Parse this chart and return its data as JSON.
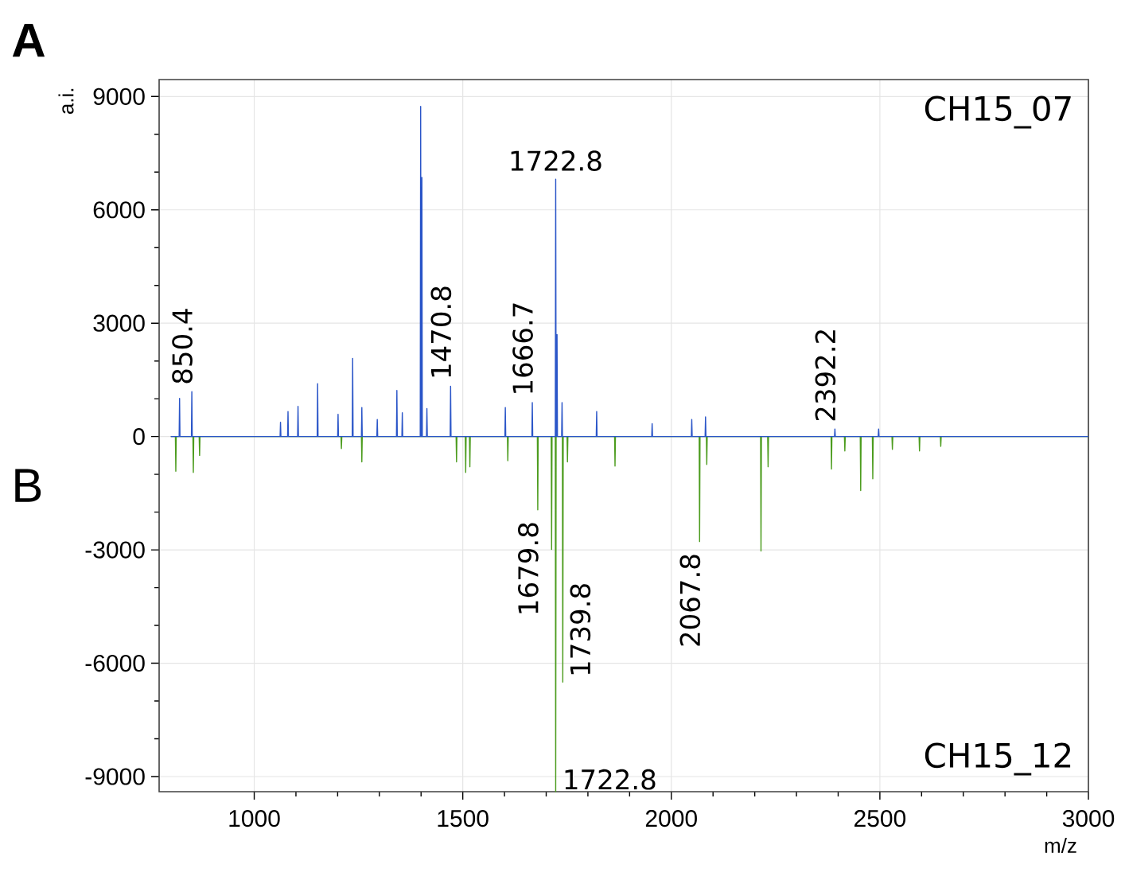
{
  "chart_data": {
    "type": "line",
    "xlabel": "m/z",
    "ylabel": "a.i.",
    "xlim": [
      772,
      3000
    ],
    "ylim": [
      -9400,
      9450
    ],
    "xticks": [
      1000,
      1500,
      2000,
      2500,
      3000
    ],
    "yticks": [
      -9000,
      -6000,
      -3000,
      0,
      3000,
      6000,
      9000
    ],
    "grid": true,
    "series": [
      {
        "color": "#2a55c8",
        "x": [
          800,
          820,
          821,
          822,
          849.4,
          850.4,
          851.4,
          1062,
          1063,
          1064,
          1080,
          1081,
          1082,
          1104,
          1105,
          1106,
          1151,
          1152,
          1153,
          1200,
          1201,
          1202,
          1235,
          1236,
          1237,
          1257,
          1258,
          1259,
          1294,
          1295,
          1296,
          1341,
          1342,
          1343,
          1354,
          1355,
          1356,
          1398,
          1399,
          1400,
          1401,
          1402,
          1403,
          1413,
          1414,
          1415,
          1469.8,
          1470.8,
          1471.8,
          1601,
          1602,
          1603,
          1665.7,
          1666.7,
          1667.7,
          1721.8,
          1722.8,
          1723.8,
          1725,
          1726,
          1727,
          1737,
          1738,
          1739,
          1820,
          1821,
          1822,
          1953,
          1954,
          1955,
          2048,
          2049,
          2050,
          2081,
          2082,
          2083,
          2391.2,
          2392.2,
          2393.2,
          2496,
          2497,
          2498,
          3000
        ],
        "values": [
          0,
          0,
          1010,
          0,
          0,
          1190,
          0,
          0,
          380,
          0,
          0,
          660,
          0,
          0,
          800,
          0,
          0,
          1400,
          0,
          0,
          590,
          0,
          0,
          2070,
          0,
          0,
          770,
          0,
          0,
          450,
          0,
          0,
          1220,
          0,
          0,
          630,
          0,
          0,
          8740,
          0,
          0,
          6860,
          0,
          0,
          740,
          0,
          0,
          1330,
          0,
          0,
          770,
          0,
          0,
          900,
          0,
          0,
          6810,
          0,
          0,
          2700,
          0,
          0,
          900,
          0,
          0,
          660,
          0,
          0,
          340,
          0,
          0,
          450,
          0,
          0,
          520,
          0,
          0,
          200,
          0,
          0,
          200,
          0,
          0
        ]
      },
      {
        "color": "#4c9c1e",
        "x": [
          800,
          811,
          812,
          813,
          853,
          854,
          855,
          868,
          869,
          870,
          1208,
          1209,
          1210,
          1257,
          1258,
          1259,
          1484,
          1485,
          1486,
          1506,
          1507,
          1508,
          1516,
          1517,
          1518,
          1607,
          1608,
          1609,
          1678.8,
          1679.8,
          1680.8,
          1712,
          1713,
          1714,
          1721.8,
          1722.8,
          1723.8,
          1738.8,
          1739.8,
          1740.8,
          1750,
          1751,
          1752,
          1864,
          1865,
          1866,
          2066.8,
          2067.8,
          2068.8,
          2084,
          2085,
          2086,
          2214,
          2215,
          2216,
          2231,
          2232,
          2233,
          2383,
          2384,
          2385,
          2415,
          2416,
          2417,
          2453,
          2454,
          2455,
          2482,
          2483,
          2484,
          2529,
          2530,
          2531,
          2594,
          2595,
          2596,
          2645,
          2646,
          2647,
          3000
        ],
        "values": [
          0,
          0,
          -920,
          0,
          0,
          -950,
          0,
          0,
          -500,
          0,
          0,
          -320,
          0,
          0,
          -670,
          0,
          0,
          -670,
          0,
          0,
          -950,
          0,
          0,
          -800,
          0,
          0,
          -640,
          0,
          0,
          -1940,
          0,
          0,
          -2990,
          0,
          0,
          -9400,
          0,
          0,
          -6500,
          0,
          0,
          -670,
          0,
          0,
          -780,
          0,
          0,
          -2780,
          0,
          0,
          -740,
          0,
          0,
          -3030,
          0,
          0,
          -800,
          0,
          0,
          -860,
          0,
          0,
          -380,
          0,
          0,
          -1430,
          0,
          0,
          -1120,
          0,
          0,
          -340,
          0,
          0,
          -380,
          0,
          0,
          -260,
          0,
          0
        ]
      }
    ],
    "annotations": [
      "A",
      "B",
      "CH15_07",
      "CH15_12",
      {
        "text": "850.4",
        "x": 850.4,
        "y": 1190
      },
      {
        "text": "1470.8",
        "x": 1470.8,
        "y": 1330
      },
      {
        "text": "1666.7",
        "x": 1666.7,
        "y": 900
      },
      {
        "text": "1722.8",
        "x": 1722.8,
        "y": 6810
      },
      {
        "text": "2392.2",
        "x": 2392.2,
        "y": 200
      },
      {
        "text": "1679.8",
        "x": 1679.8,
        "y": -1940
      },
      {
        "text": "1722.8",
        "x": 1722.8,
        "y": -9400
      },
      {
        "text": "1739.8",
        "x": 1739.8,
        "y": -6500
      },
      {
        "text": "2067.8",
        "x": 2067.8,
        "y": -2780
      }
    ]
  }
}
